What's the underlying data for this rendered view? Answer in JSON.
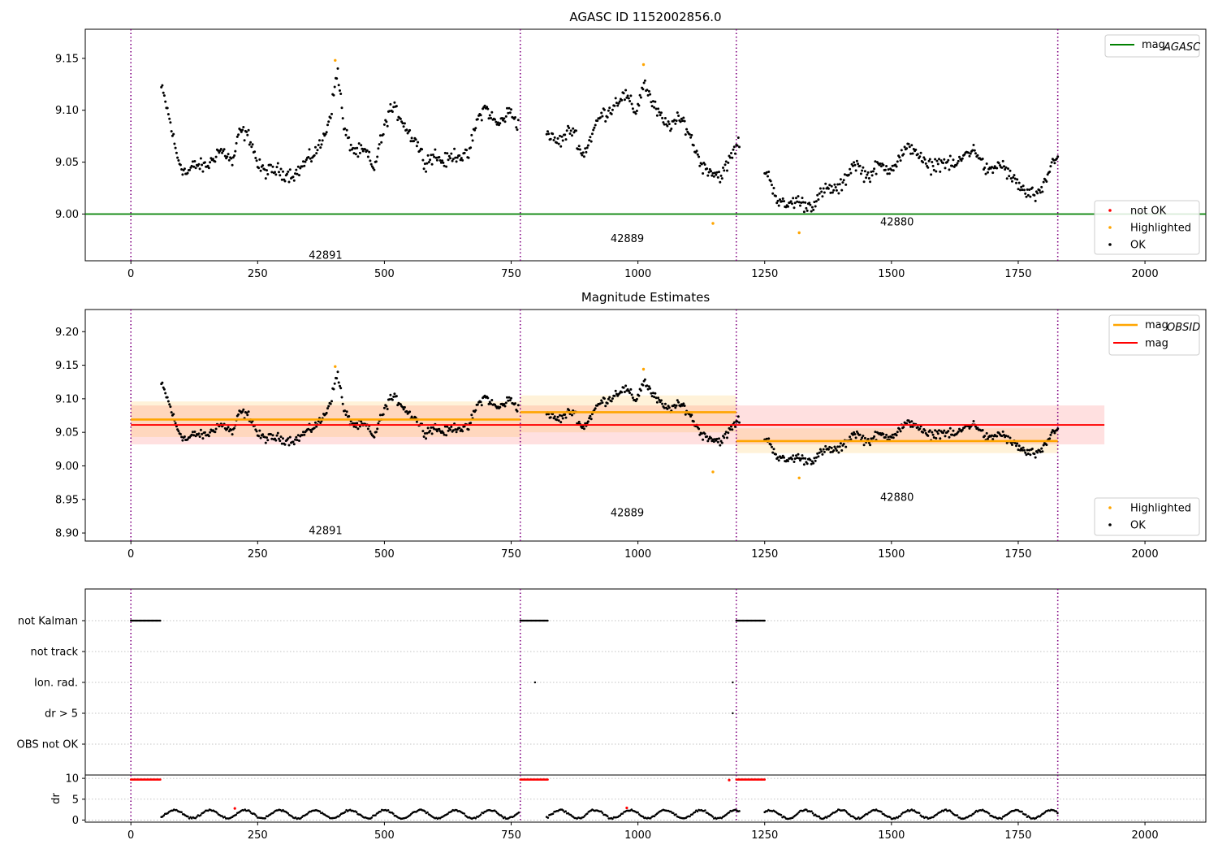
{
  "chart_data": [
    {
      "type": "scatter",
      "title": "AGASC ID 1152002856.0",
      "xlim": [
        -90,
        2120
      ],
      "ylim": [
        8.955,
        9.178
      ],
      "xticks": [
        0,
        250,
        500,
        750,
        1000,
        1250,
        1500,
        1750,
        2000
      ],
      "yticks": [
        9.0,
        9.05,
        9.1,
        9.15
      ],
      "ytick_labels": [
        "9.00",
        "9.05",
        "9.10",
        "9.15"
      ],
      "vlines": [
        0,
        768,
        1194,
        1828
      ],
      "hline": {
        "name": "mag_AGASC",
        "value": 9.0,
        "color": "#008000"
      },
      "obsid_labels": [
        {
          "text": "42891",
          "x": 384,
          "y": 8.96
        },
        {
          "text": "42889",
          "x": 979,
          "y": 8.976
        },
        {
          "text": "42880",
          "x": 1511,
          "y": 8.992
        }
      ],
      "legend_top": {
        "position": "top-right",
        "entries": [
          {
            "label": "mag",
            "sub": "AGASC",
            "color": "#008000"
          }
        ]
      },
      "legend_bottom": {
        "position": "lower-right",
        "entries": [
          {
            "label": "not OK",
            "color": "#ff0000"
          },
          {
            "label": "Highlighted",
            "color": "#ffa500"
          },
          {
            "label": "OK",
            "color": "#000000"
          }
        ]
      },
      "highlighted_points": [
        [
          403,
          9.148
        ],
        [
          1011,
          9.144
        ],
        [
          1148,
          8.991
        ],
        [
          1318,
          8.982
        ]
      ],
      "curve": {
        "segments": [
          [
            60,
            765
          ],
          [
            820,
            1200
          ],
          [
            1250,
            1828
          ]
        ],
        "anchors": [
          [
            60,
            9.12
          ],
          [
            75,
            9.09
          ],
          [
            90,
            9.06
          ],
          [
            110,
            9.04
          ],
          [
            140,
            9.045
          ],
          [
            170,
            9.06
          ],
          [
            200,
            9.05
          ],
          [
            215,
            9.085
          ],
          [
            235,
            9.07
          ],
          [
            250,
            9.045
          ],
          [
            275,
            9.045
          ],
          [
            300,
            9.035
          ],
          [
            330,
            9.045
          ],
          [
            355,
            9.05
          ],
          [
            375,
            9.07
          ],
          [
            395,
            9.1
          ],
          [
            408,
            9.135
          ],
          [
            420,
            9.08
          ],
          [
            440,
            9.065
          ],
          [
            465,
            9.055
          ],
          [
            478,
            9.04
          ],
          [
            490,
            9.07
          ],
          [
            510,
            9.1
          ],
          [
            535,
            9.09
          ],
          [
            560,
            9.075
          ],
          [
            580,
            9.045
          ],
          [
            600,
            9.06
          ],
          [
            625,
            9.05
          ],
          [
            645,
            9.055
          ],
          [
            665,
            9.06
          ],
          [
            680,
            9.085
          ],
          [
            700,
            9.1
          ],
          [
            725,
            9.09
          ],
          [
            748,
            9.095
          ],
          [
            765,
            9.085
          ],
          [
            820,
            9.08
          ],
          [
            850,
            9.07
          ],
          [
            875,
            9.08
          ],
          [
            890,
            9.06
          ],
          [
            910,
            9.075
          ],
          [
            930,
            9.095
          ],
          [
            955,
            9.11
          ],
          [
            975,
            9.11
          ],
          [
            995,
            9.1
          ],
          [
            1012,
            9.13
          ],
          [
            1030,
            9.1
          ],
          [
            1050,
            9.09
          ],
          [
            1070,
            9.09
          ],
          [
            1090,
            9.085
          ],
          [
            1110,
            9.07
          ],
          [
            1130,
            9.045
          ],
          [
            1150,
            9.035
          ],
          [
            1165,
            9.04
          ],
          [
            1180,
            9.055
          ],
          [
            1200,
            9.065
          ],
          [
            1250,
            9.04
          ],
          [
            1275,
            9.015
          ],
          [
            1300,
            9.01
          ],
          [
            1325,
            9.008
          ],
          [
            1350,
            9.015
          ],
          [
            1375,
            9.02
          ],
          [
            1400,
            9.03
          ],
          [
            1425,
            9.045
          ],
          [
            1450,
            9.04
          ],
          [
            1470,
            9.045
          ],
          [
            1490,
            9.04
          ],
          [
            1520,
            9.06
          ],
          [
            1545,
            9.06
          ],
          [
            1570,
            9.05
          ],
          [
            1595,
            9.045
          ],
          [
            1620,
            9.05
          ],
          [
            1645,
            9.055
          ],
          [
            1670,
            9.06
          ],
          [
            1695,
            9.04
          ],
          [
            1720,
            9.045
          ],
          [
            1745,
            9.035
          ],
          [
            1765,
            9.015
          ],
          [
            1790,
            9.02
          ],
          [
            1810,
            9.04
          ],
          [
            1828,
            9.055
          ]
        ],
        "noise": 0.01,
        "step": 2,
        "color": "#000000"
      }
    },
    {
      "type": "scatter",
      "title": "Magnitude Estimates",
      "xlim": [
        -90,
        2120
      ],
      "ylim": [
        8.888,
        9.233
      ],
      "xticks": [
        0,
        250,
        500,
        750,
        1000,
        1250,
        1500,
        1750,
        2000
      ],
      "yticks": [
        8.9,
        8.95,
        9.0,
        9.05,
        9.1,
        9.15,
        9.2
      ],
      "ytick_labels": [
        "8.90",
        "8.95",
        "9.00",
        "9.05",
        "9.10",
        "9.15",
        "9.20"
      ],
      "vlines": [
        0,
        768,
        1194,
        1828
      ],
      "mag": {
        "value": 9.061,
        "band": [
          9.032,
          9.09
        ],
        "x_range": [
          0,
          1920
        ],
        "color": "#ff0000"
      },
      "mag_obsid": [
        {
          "x_range": [
            0,
            768
          ],
          "value": 9.069,
          "band": [
            9.043,
            9.096
          ]
        },
        {
          "x_range": [
            768,
            1194
          ],
          "value": 9.08,
          "band": [
            9.05,
            9.105
          ]
        },
        {
          "x_range": [
            1194,
            1828
          ],
          "value": 9.037,
          "band": [
            9.019,
            9.056
          ]
        }
      ],
      "obsid_labels": [
        {
          "text": "42891",
          "x": 384,
          "y": 8.903
        },
        {
          "text": "42889",
          "x": 979,
          "y": 8.93
        },
        {
          "text": "42880",
          "x": 1511,
          "y": 8.953
        }
      ],
      "legend_top": {
        "position": "top-right",
        "entries": [
          {
            "label": "mag",
            "sub": "OBSID",
            "color": "#ffa500"
          },
          {
            "label": "mag",
            "sub": "",
            "color": "#ff0000"
          }
        ]
      },
      "legend_bottom": {
        "position": "lower-right",
        "entries": [
          {
            "label": "Highlighted",
            "color": "#ffa500"
          },
          {
            "label": "OK",
            "color": "#000000"
          }
        ]
      },
      "highlighted_points": [
        [
          403,
          9.148
        ],
        [
          1011,
          9.144
        ],
        [
          1148,
          8.991
        ],
        [
          1318,
          8.982
        ]
      ]
    },
    {
      "type": "scatter",
      "title": "",
      "xlim": [
        -90,
        2120
      ],
      "vlines": [
        0,
        768,
        1194,
        1828
      ],
      "flag_rows": [
        "not Kalman",
        "not track",
        "Ion. rad.",
        "dr > 5",
        "OBS not OK"
      ],
      "flag_segments": [
        {
          "row": "not Kalman",
          "x_range": [
            0,
            58
          ]
        },
        {
          "row": "not Kalman",
          "x_range": [
            768,
            822
          ]
        },
        {
          "row": "not Kalman",
          "x_range": [
            1194,
            1250
          ]
        }
      ],
      "flag_points": [
        {
          "row": "Ion. rad.",
          "x": 797
        },
        {
          "row": "Ion. rad.",
          "x": 1187
        },
        {
          "row": "dr > 5",
          "x": 1187
        }
      ],
      "dr": {
        "ylabel": "dr",
        "ylim": [
          -0.5,
          10.8
        ],
        "yticks": [
          0,
          5,
          10
        ],
        "ytick_labels": [
          "0",
          "5",
          "10"
        ],
        "red_segments": [
          [
            0,
            58
          ],
          [
            768,
            822
          ],
          [
            1194,
            1250
          ]
        ],
        "red_value": 9.7,
        "red_points": [
          [
            205,
            2.8
          ],
          [
            978,
            2.9
          ],
          [
            1180,
            9.6
          ]
        ],
        "black_segments": [
          [
            60,
            765
          ],
          [
            820,
            1200
          ],
          [
            1250,
            1828
          ]
        ],
        "black_range": [
          0.3,
          2.5
        ]
      },
      "xticks": [
        0,
        250,
        500,
        750,
        1000,
        1250,
        1500,
        1750,
        2000
      ]
    }
  ]
}
